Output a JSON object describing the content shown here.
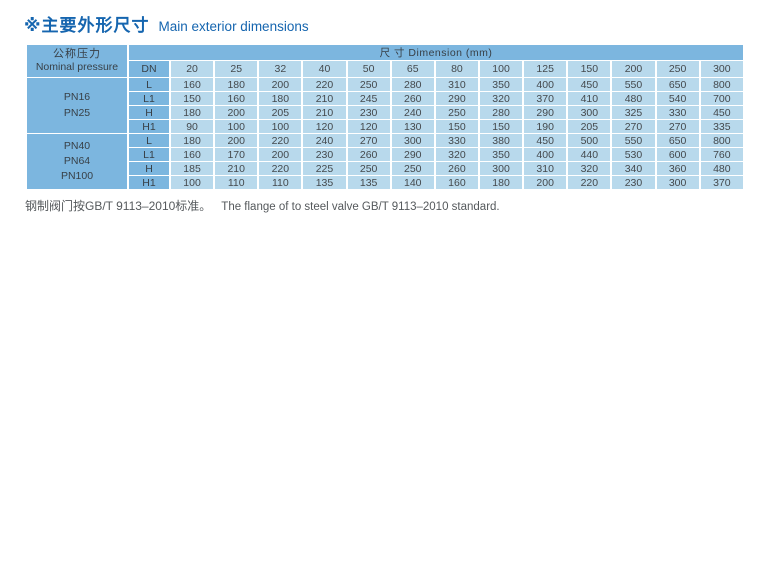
{
  "page": {
    "title_zh": "※主要外形尺寸",
    "title_en": "Main exterior dimensions",
    "footnote_zh": "钢制阀门按GB/T 9113–2010标准。",
    "footnote_en": "The flange of to steel valve GB/T 9113–2010 standard."
  },
  "colors": {
    "header_blue": "#7cb6df",
    "cell_blue": "#b8d9ec",
    "title_blue": "#1565af",
    "text_dark": "#44494d",
    "footnote_gray": "#55595c"
  },
  "table": {
    "corner_header": {
      "zh": "公称压力",
      "en": "Nominal pressure"
    },
    "dimension_header": "尺 寸  Dimension (mm)",
    "dn_label": "DN",
    "dn_values": [
      "20",
      "25",
      "32",
      "40",
      "50",
      "65",
      "80",
      "100",
      "125",
      "150",
      "200",
      "250",
      "300"
    ],
    "groups": [
      {
        "pressure": [
          "PN16",
          "PN25"
        ],
        "rows": [
          {
            "label": "L",
            "values": [
              160,
              180,
              200,
              220,
              250,
              280,
              310,
              350,
              400,
              450,
              550,
              650,
              800
            ]
          },
          {
            "label": "L1",
            "values": [
              150,
              160,
              180,
              210,
              245,
              260,
              290,
              320,
              370,
              410,
              480,
              540,
              700
            ]
          },
          {
            "label": "H",
            "values": [
              180,
              200,
              205,
              210,
              230,
              240,
              250,
              280,
              290,
              300,
              325,
              330,
              450
            ]
          },
          {
            "label": "H1",
            "values": [
              90,
              100,
              100,
              120,
              120,
              130,
              150,
              150,
              190,
              205,
              270,
              270,
              335
            ]
          }
        ]
      },
      {
        "pressure": [
          "PN40",
          "PN64",
          "PN100"
        ],
        "rows": [
          {
            "label": "L",
            "values": [
              180,
              200,
              220,
              240,
              270,
              300,
              330,
              380,
              450,
              500,
              550,
              650,
              800
            ]
          },
          {
            "label": "L1",
            "values": [
              160,
              170,
              200,
              230,
              260,
              290,
              320,
              350,
              400,
              440,
              530,
              600,
              760
            ]
          },
          {
            "label": "H",
            "values": [
              185,
              210,
              220,
              225,
              250,
              250,
              260,
              300,
              310,
              320,
              340,
              360,
              480
            ]
          },
          {
            "label": "H1",
            "values": [
              100,
              110,
              110,
              135,
              135,
              140,
              160,
              180,
              200,
              220,
              230,
              300,
              370
            ]
          }
        ]
      }
    ]
  }
}
